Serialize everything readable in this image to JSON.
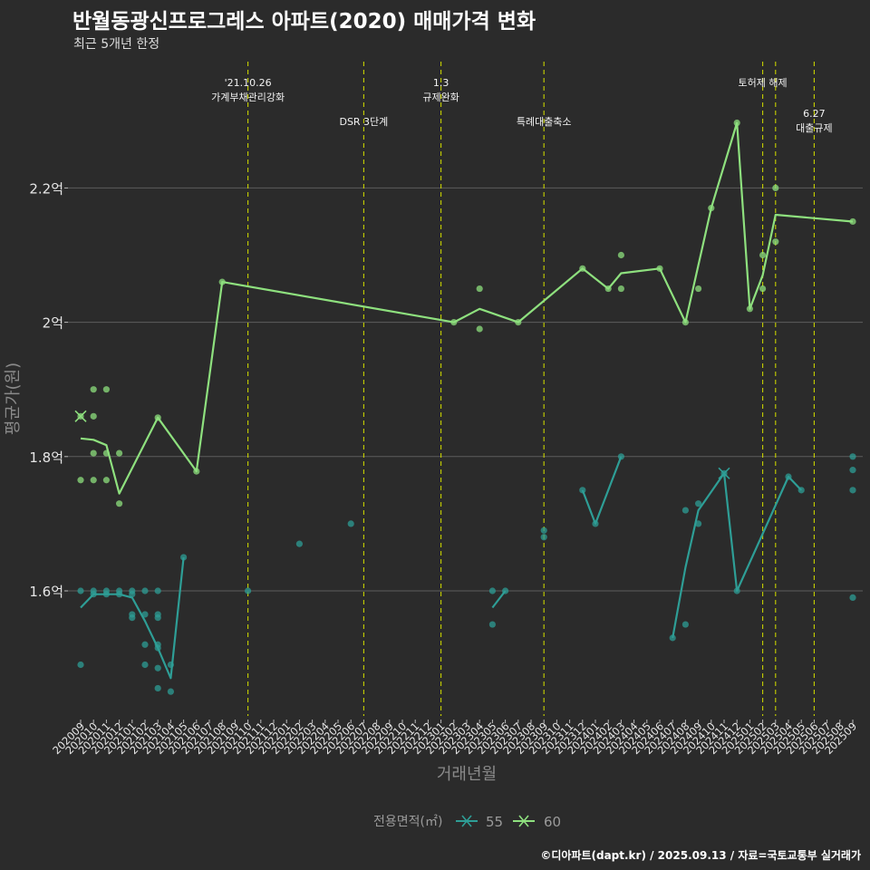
{
  "title": "반월동광신프로그레스 아파트(2020) 매매가격 변화",
  "subtitle": "최근 5개년 한정",
  "footer": "©디아파트(dapt.kr) / 2025.09.13 / 자료=국토교통부 실거래가",
  "colors": {
    "s55": "#2e9e96",
    "s60": "#8ee07e",
    "vline": "#c8d200",
    "grid": "#5c5c5c",
    "bg": "#2b2b2b"
  },
  "chart_data": {
    "type": "line",
    "xlabel": "거래년월",
    "ylabel": "평균가(원)",
    "categories": [
      "202009",
      "202010",
      "202011",
      "202012",
      "202101",
      "202102",
      "202103",
      "202104",
      "202105",
      "202106",
      "202107",
      "202108",
      "202109",
      "202110",
      "202111",
      "202112",
      "202201",
      "202202",
      "202203",
      "202204",
      "202205",
      "202206",
      "202207",
      "202208",
      "202209",
      "202210",
      "202211",
      "202212",
      "202301",
      "202302",
      "202303",
      "202304",
      "202305",
      "202306",
      "202307",
      "202308",
      "202309",
      "202310",
      "202311",
      "202312",
      "202401",
      "202402",
      "202403",
      "202404",
      "202405",
      "202406",
      "202407",
      "202408",
      "202409",
      "202410",
      "202411",
      "202412",
      "202501",
      "202502",
      "202503",
      "202504",
      "202505",
      "202506",
      "202507",
      "202508",
      "202509"
    ],
    "y_ticks": [
      1.6,
      1.8,
      2.0,
      2.2
    ],
    "y_tick_labels": [
      "1.6억",
      "1.8억",
      "2억",
      "2.2억"
    ],
    "ylim": [
      1.42,
      2.39
    ],
    "grid": true,
    "legend": {
      "title": "전용면적(㎡)",
      "position": "bottom",
      "entries": [
        "55",
        "60"
      ]
    },
    "series": [
      {
        "name": "55",
        "line": [
          [
            "202009",
            1.575
          ],
          [
            "202010",
            1.595
          ],
          [
            "202011",
            1.595
          ],
          [
            "202012",
            1.595
          ],
          [
            "202101",
            1.59
          ],
          [
            "202102",
            1.555
          ],
          [
            "202103",
            1.515
          ],
          [
            "202104",
            1.47
          ],
          [
            "202105",
            1.65
          ],
          null,
          [
            "202305",
            1.575
          ],
          [
            "202306",
            1.6
          ],
          null,
          [
            "202312",
            1.75
          ],
          [
            "202401",
            1.7
          ],
          [
            "202403",
            1.8
          ],
          null,
          [
            "202407",
            1.53
          ],
          [
            "202408",
            1.635
          ],
          [
            "202409",
            1.72
          ],
          [
            "202411",
            1.775
          ],
          [
            "202412",
            1.6
          ],
          [
            "202504",
            1.77
          ],
          [
            "202505",
            1.75
          ]
        ],
        "highlight": [
          "202411",
          1.775
        ],
        "points": [
          [
            "202009",
            1.6
          ],
          [
            "202009",
            1.49
          ],
          [
            "202010",
            1.6
          ],
          [
            "202010",
            1.595
          ],
          [
            "202011",
            1.6
          ],
          [
            "202011",
            1.595
          ],
          [
            "202012",
            1.6
          ],
          [
            "202012",
            1.595
          ],
          [
            "202101",
            1.6
          ],
          [
            "202101",
            1.595
          ],
          [
            "202101",
            1.565
          ],
          [
            "202101",
            1.56
          ],
          [
            "202102",
            1.6
          ],
          [
            "202102",
            1.565
          ],
          [
            "202102",
            1.52
          ],
          [
            "202102",
            1.49
          ],
          [
            "202103",
            1.6
          ],
          [
            "202103",
            1.565
          ],
          [
            "202103",
            1.56
          ],
          [
            "202103",
            1.52
          ],
          [
            "202103",
            1.515
          ],
          [
            "202103",
            1.485
          ],
          [
            "202103",
            1.455
          ],
          [
            "202104",
            1.49
          ],
          [
            "202104",
            1.45
          ],
          [
            "202105",
            1.65
          ],
          [
            "202110",
            1.6
          ],
          [
            "202202",
            1.67
          ],
          [
            "202206",
            1.7
          ],
          [
            "202305",
            1.6
          ],
          [
            "202305",
            1.55
          ],
          [
            "202306",
            1.6
          ],
          [
            "202309",
            1.69
          ],
          [
            "202309",
            1.68
          ],
          [
            "202312",
            1.75
          ],
          [
            "202401",
            1.7
          ],
          [
            "202403",
            1.8
          ],
          [
            "202407",
            1.53
          ],
          [
            "202408",
            1.72
          ],
          [
            "202408",
            1.55
          ],
          [
            "202409",
            1.73
          ],
          [
            "202409",
            1.7
          ],
          [
            "202411",
            1.775
          ],
          [
            "202412",
            1.6
          ],
          [
            "202504",
            1.77
          ],
          [
            "202505",
            1.75
          ],
          [
            "202509",
            1.8
          ],
          [
            "202509",
            1.78
          ],
          [
            "202509",
            1.75
          ],
          [
            "202509",
            1.59
          ]
        ]
      },
      {
        "name": "60",
        "line": [
          [
            "202009",
            1.827
          ],
          [
            "202010",
            1.825
          ],
          [
            "202011",
            1.817
          ],
          [
            "202012",
            1.745
          ],
          [
            "202103",
            1.858
          ],
          [
            "202106",
            1.778
          ],
          [
            "202108",
            2.06
          ],
          [
            "202302",
            2.0
          ],
          [
            "202304",
            2.02
          ],
          [
            "202307",
            2.0
          ],
          [
            "202312",
            2.08
          ],
          [
            "202402",
            2.05
          ],
          [
            "202403",
            2.073
          ],
          [
            "202406",
            2.08
          ],
          [
            "202408",
            2.0
          ],
          [
            "202410",
            2.17
          ],
          [
            "202412",
            2.297
          ],
          [
            "202501",
            2.02
          ],
          [
            "202502",
            2.07
          ],
          [
            "202503",
            2.16
          ],
          [
            "202509",
            2.15
          ]
        ],
        "highlight": [
          "202009",
          1.86
        ],
        "points": [
          [
            "202009",
            1.86
          ],
          [
            "202009",
            1.765
          ],
          [
            "202010",
            1.9
          ],
          [
            "202010",
            1.86
          ],
          [
            "202010",
            1.805
          ],
          [
            "202010",
            1.765
          ],
          [
            "202011",
            1.9
          ],
          [
            "202011",
            1.805
          ],
          [
            "202011",
            1.765
          ],
          [
            "202012",
            1.805
          ],
          [
            "202012",
            1.73
          ],
          [
            "202103",
            1.858
          ],
          [
            "202106",
            1.778
          ],
          [
            "202108",
            2.06
          ],
          [
            "202302",
            2.0
          ],
          [
            "202304",
            2.05
          ],
          [
            "202304",
            1.99
          ],
          [
            "202307",
            2.0
          ],
          [
            "202312",
            2.08
          ],
          [
            "202402",
            2.05
          ],
          [
            "202403",
            2.1
          ],
          [
            "202403",
            2.05
          ],
          [
            "202406",
            2.08
          ],
          [
            "202408",
            2.0
          ],
          [
            "202409",
            2.05
          ],
          [
            "202410",
            2.17
          ],
          [
            "202412",
            2.297
          ],
          [
            "202501",
            2.02
          ],
          [
            "202502",
            2.1
          ],
          [
            "202502",
            2.05
          ],
          [
            "202503",
            2.2
          ],
          [
            "202503",
            2.12
          ],
          [
            "202509",
            2.15
          ]
        ]
      }
    ],
    "annotations": [
      {
        "x": "202110",
        "lines": [
          "'21.10.26",
          "가계부채관리강화"
        ],
        "level": 0
      },
      {
        "x": "202207",
        "lines": [
          "DSR 3단계"
        ],
        "level": 1
      },
      {
        "x": "202301",
        "lines": [
          "1.3",
          "규제완화"
        ],
        "level": 0
      },
      {
        "x": "202309",
        "lines": [
          "특례대출축소"
        ],
        "level": 1
      },
      {
        "x": "202502",
        "lines": [
          "토허제 해제"
        ],
        "level": 0
      },
      {
        "x": "202503",
        "lines": [],
        "level": 0
      },
      {
        "x": "202506",
        "lines": [
          "6.27",
          "대출규제"
        ],
        "level": 2
      }
    ]
  }
}
